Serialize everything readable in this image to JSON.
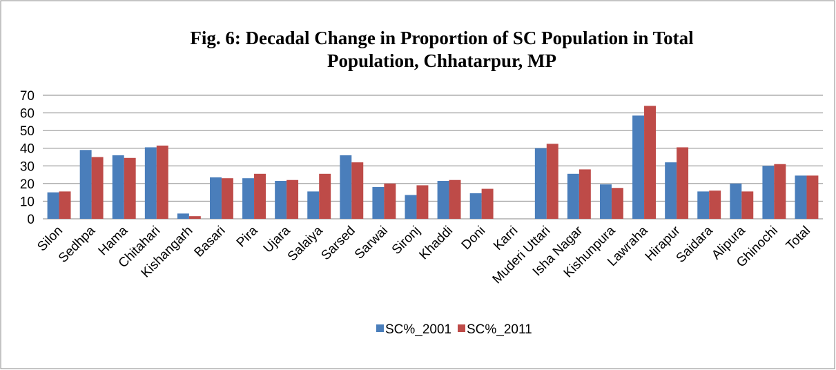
{
  "chart_data": {
    "type": "bar",
    "title_lines": [
      "Fig. 6: Decadal Change in Proportion of SC Population in Total",
      "Population, Chhatarpur, MP"
    ],
    "categories": [
      "Silon",
      "Sedhpa",
      "Hama",
      "Chitahari",
      "Kishangarh",
      "Basari",
      "Pira",
      "Ujara",
      "Salaiya",
      "Sarsed",
      "Sarwai",
      "Sironj",
      "Khaddi",
      "Doni",
      "Karri",
      "Muderi Uttari",
      "Isha Nagar",
      "Kishunpura",
      "Lawraha",
      "Hirapur",
      "Saidara",
      "Alipura",
      "Ghinochi",
      "Total"
    ],
    "series": [
      {
        "name": "SC%_2001",
        "color": "#4a7ebb",
        "values": [
          15,
          39,
          36,
          40.5,
          3,
          23.5,
          23,
          21.5,
          15.5,
          36,
          18,
          13.5,
          21.5,
          14.5,
          0,
          40,
          25.5,
          19.5,
          58.5,
          32,
          15.5,
          20,
          30,
          24.5
        ]
      },
      {
        "name": "SC%_2011",
        "color": "#be4b48",
        "values": [
          15.5,
          35,
          34.5,
          41.5,
          1.5,
          23,
          25.5,
          22,
          25.5,
          32,
          20,
          19,
          22,
          17,
          0,
          42.5,
          28,
          17.5,
          64,
          40.5,
          16,
          15.5,
          31,
          24.5
        ]
      }
    ],
    "ylim": [
      0,
      70
    ],
    "yticks": [
      0,
      10,
      20,
      30,
      40,
      50,
      60,
      70
    ],
    "grid": true,
    "legend": "bottom"
  }
}
